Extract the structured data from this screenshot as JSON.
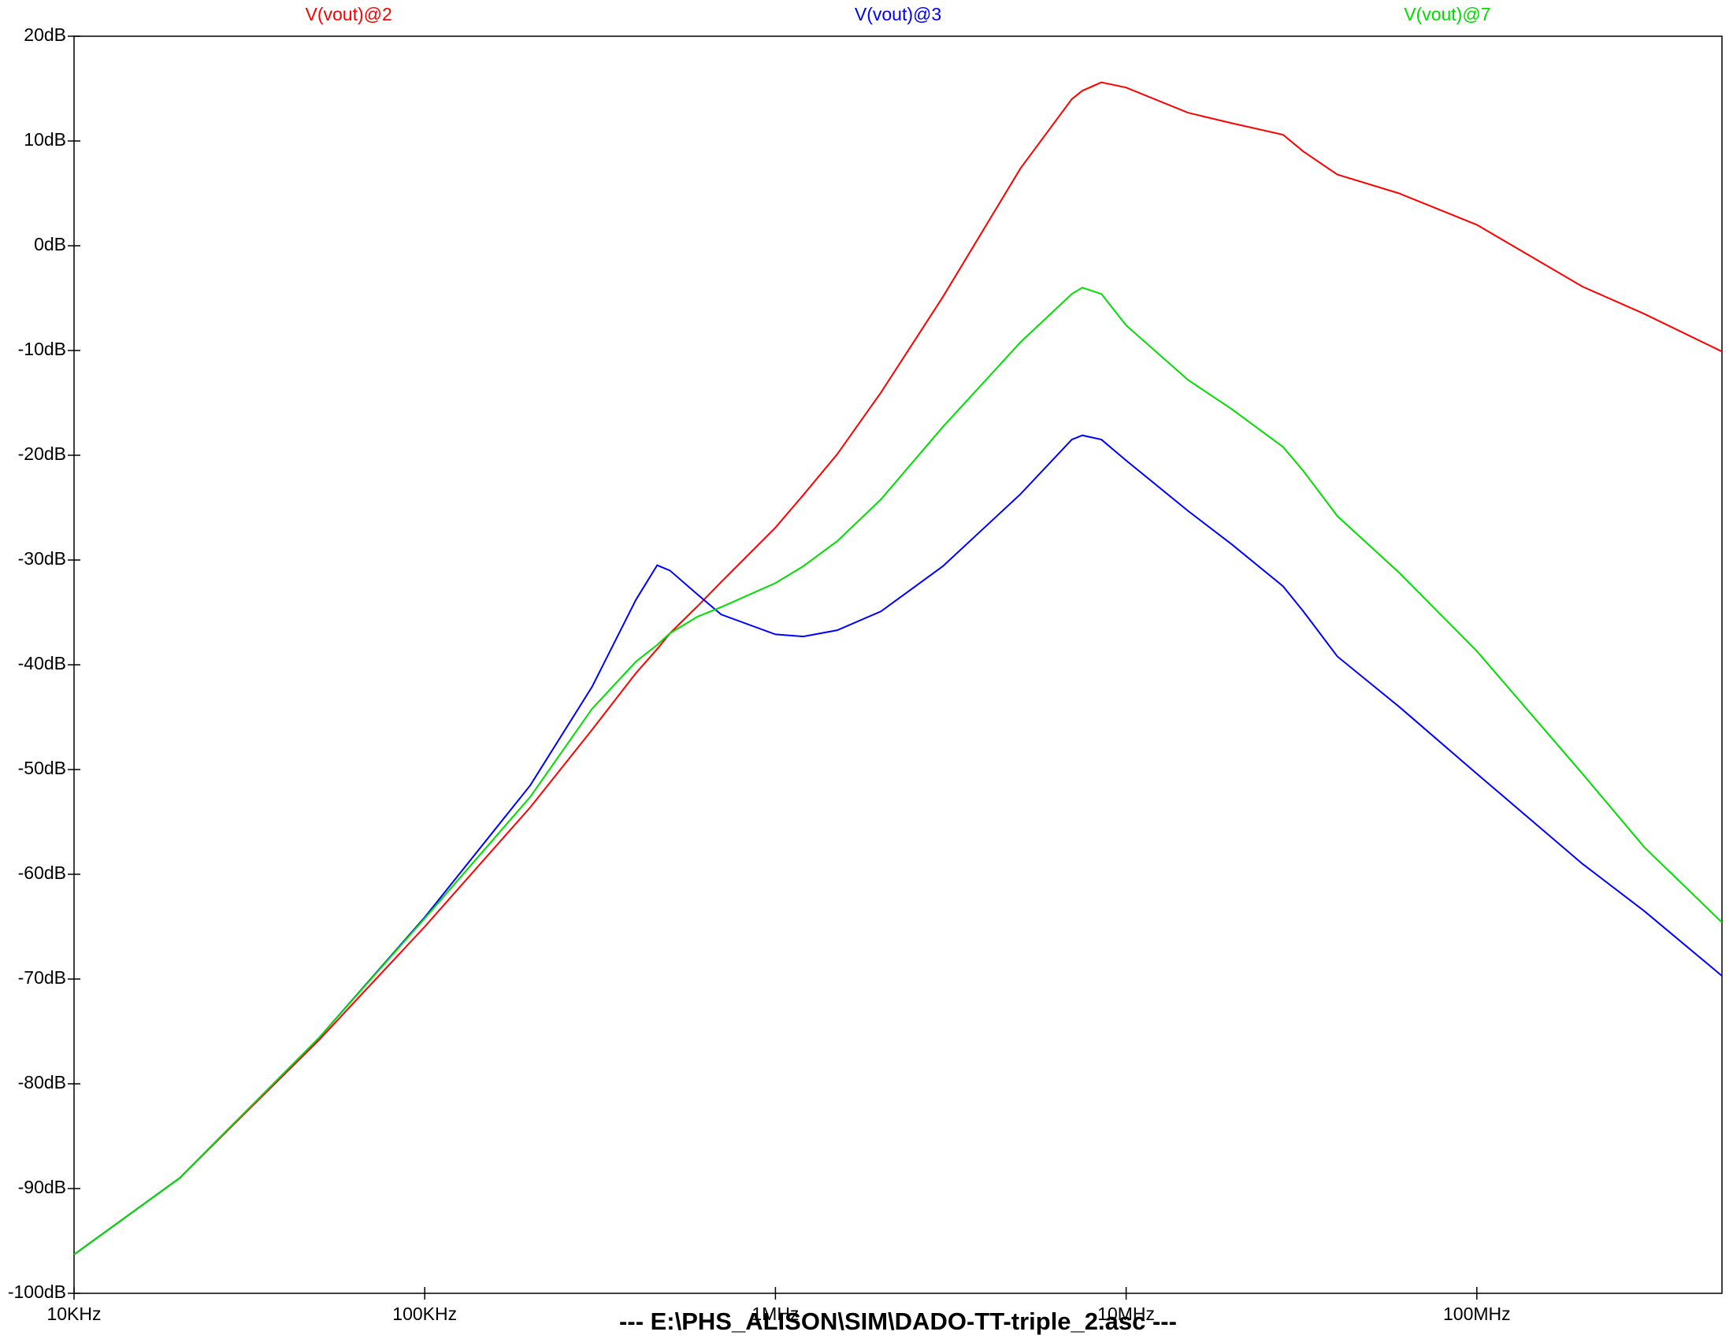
{
  "chart_data": {
    "type": "line",
    "title": "---  E:\\PHS_ALISON\\SIM\\DADO-TT-triple_2.asc  ---",
    "log_x": true,
    "grid": false,
    "xlim": [
      10000,
      500000000
    ],
    "ylim": [
      -100,
      20
    ],
    "xticks": [
      {
        "value": 10000,
        "label": "10KHz"
      },
      {
        "value": 100000,
        "label": "100KHz"
      },
      {
        "value": 1000000,
        "label": "1MHz"
      },
      {
        "value": 10000000,
        "label": "10MHz"
      },
      {
        "value": 100000000,
        "label": "100MHz"
      }
    ],
    "yticks": [
      {
        "value": 20,
        "label": "20dB"
      },
      {
        "value": 10,
        "label": "10dB"
      },
      {
        "value": 0,
        "label": "0dB"
      },
      {
        "value": -10,
        "label": "-10dB"
      },
      {
        "value": -20,
        "label": "-20dB"
      },
      {
        "value": -30,
        "label": "-30dB"
      },
      {
        "value": -40,
        "label": "-40dB"
      },
      {
        "value": -50,
        "label": "-50dB"
      },
      {
        "value": -60,
        "label": "-60dB"
      },
      {
        "value": -70,
        "label": "-70dB"
      },
      {
        "value": -80,
        "label": "-80dB"
      },
      {
        "value": -90,
        "label": "-90dB"
      },
      {
        "value": -100,
        "label": "-100dB"
      }
    ],
    "x": [
      10000,
      20000,
      50000,
      100000,
      200000,
      300000,
      400000,
      460000,
      500000,
      600000,
      700000,
      1000000,
      1200000,
      1500000,
      2000000,
      3000000,
      5000000,
      7000000,
      7500000,
      8500000,
      10000000,
      15000000,
      20000000,
      28000000,
      32000000,
      40000000,
      60000000,
      100000000,
      200000000,
      300000000,
      500000000
    ],
    "series": [
      {
        "name": "V(vout)@2",
        "color": "#ff0000",
        "values": [
          -96.3,
          -89,
          -75.8,
          -65,
          -53.6,
          -46.2,
          -40.8,
          -38.5,
          -37,
          -34.4,
          -32.1,
          -26.9,
          -23.8,
          -19.9,
          -14,
          -4.9,
          7.4,
          14,
          14.8,
          15.6,
          15.1,
          12.7,
          11.7,
          10.6,
          9,
          6.8,
          5,
          2,
          -3.9,
          -6.5,
          -10.1
        ]
      },
      {
        "name": "V(vout)@3",
        "color": "#0000ff",
        "values": [
          -96.3,
          -89,
          -75.6,
          -64.1,
          -51.5,
          -42.1,
          -33.8,
          -30.5,
          -31,
          -33.3,
          -35.2,
          -37.1,
          -37.3,
          -36.7,
          -34.9,
          -30.6,
          -23.7,
          -18.5,
          -18.1,
          -18.5,
          -20.5,
          -25.3,
          -28.5,
          -32.5,
          -34.9,
          -39.2,
          -44,
          -50.4,
          -59,
          -63.5,
          -69.7
        ]
      },
      {
        "name": "V(vout)@7",
        "color": "#00dd00",
        "values": [
          -96.3,
          -89,
          -75.6,
          -64.2,
          -52.6,
          -44.2,
          -39.7,
          -38.1,
          -37,
          -35.4,
          -34.5,
          -32.2,
          -30.6,
          -28.2,
          -24.2,
          -17.3,
          -9.2,
          -4.6,
          -4,
          -4.6,
          -7.6,
          -12.8,
          -15.6,
          -19.2,
          -21.5,
          -25.8,
          -31.2,
          -38.7,
          -50.4,
          -57.4,
          -64.6
        ]
      }
    ]
  }
}
